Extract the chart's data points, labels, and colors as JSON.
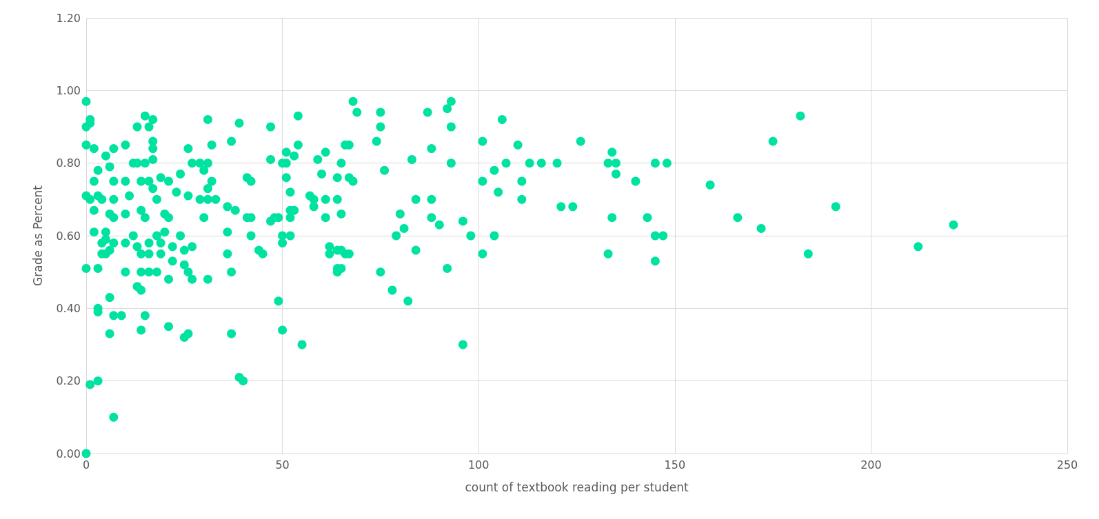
{
  "chart_data": {
    "type": "scatter",
    "xlabel": "count of textbook reading per student",
    "ylabel": "Grade as Percent",
    "xlim": [
      0,
      250
    ],
    "xticks": [
      0,
      50,
      100,
      150,
      200,
      250
    ],
    "ylim": [
      0,
      1.2
    ],
    "yticks": [
      {
        "value": 0,
        "label": "0.00"
      },
      {
        "value": 0.2,
        "label": "0.20"
      },
      {
        "value": 0.4,
        "label": "0.40"
      },
      {
        "value": 0.6,
        "label": "0.60"
      },
      {
        "value": 0.8,
        "label": "0.80"
      },
      {
        "value": 1,
        "label": "1.00"
      },
      {
        "value": 1.2,
        "label": "1.20"
      }
    ],
    "grid": true,
    "marker": "circle",
    "series": [
      {
        "color": "#00e3a0",
        "x": [
          0,
          0,
          1,
          1,
          0,
          0,
          1,
          0,
          0,
          1,
          2,
          2,
          2,
          2,
          3,
          3,
          3,
          3,
          3,
          3,
          4,
          4,
          4,
          5,
          5,
          5,
          5,
          6,
          6,
          6,
          6,
          6,
          7,
          7,
          7,
          7,
          7,
          7,
          7,
          9,
          10,
          10,
          10,
          10,
          10,
          11,
          12,
          12,
          13,
          13,
          13,
          13,
          14,
          14,
          14,
          14,
          14,
          14,
          15,
          15,
          15,
          15,
          16,
          16,
          16,
          16,
          16,
          17,
          17,
          17,
          17,
          17,
          18,
          18,
          18,
          19,
          19,
          19,
          20,
          20,
          21,
          21,
          21,
          21,
          22,
          22,
          23,
          24,
          24,
          25,
          25,
          25,
          26,
          26,
          26,
          26,
          27,
          27,
          27,
          29,
          29,
          30,
          30,
          31,
          31,
          31,
          31,
          31,
          32,
          32,
          33,
          36,
          36,
          36,
          37,
          37,
          37,
          38,
          39,
          39,
          40,
          41,
          41,
          42,
          42,
          42,
          44,
          45,
          47,
          47,
          47,
          48,
          49,
          49,
          50,
          50,
          50,
          50,
          51,
          51,
          51,
          52,
          52,
          52,
          52,
          53,
          53,
          54,
          54,
          55,
          57,
          58,
          58,
          59,
          60,
          61,
          61,
          61,
          62,
          62,
          64,
          64,
          64,
          64,
          64,
          65,
          65,
          65,
          65,
          66,
          66,
          67,
          67,
          67,
          68,
          68,
          69,
          74,
          75,
          75,
          75,
          76,
          78,
          79,
          80,
          81,
          82,
          83,
          84,
          84,
          87,
          88,
          88,
          88,
          90,
          92,
          92,
          93,
          93,
          93,
          96,
          96,
          98,
          101,
          101,
          101,
          104,
          104,
          105,
          106,
          107,
          110,
          111,
          111,
          113,
          116,
          120,
          121,
          124,
          126,
          133,
          133,
          134,
          134,
          135,
          135,
          140,
          143,
          145,
          145,
          145,
          147,
          148,
          159,
          166,
          172,
          175,
          182,
          184,
          191,
          212,
          221
        ],
        "values": [
          0.97,
          0.9,
          0.92,
          0.91,
          0.85,
          0.71,
          0.7,
          0.51,
          0,
          0.19,
          0.84,
          0.75,
          0.67,
          0.61,
          0.78,
          0.71,
          0.51,
          0.4,
          0.39,
          0.2,
          0.7,
          0.58,
          0.55,
          0.82,
          0.61,
          0.59,
          0.55,
          0.79,
          0.66,
          0.56,
          0.43,
          0.33,
          0.84,
          0.75,
          0.7,
          0.65,
          0.58,
          0.38,
          0.1,
          0.38,
          0.85,
          0.75,
          0.66,
          0.58,
          0.5,
          0.71,
          0.8,
          0.6,
          0.9,
          0.8,
          0.57,
          0.46,
          0.75,
          0.67,
          0.55,
          0.5,
          0.45,
          0.34,
          0.93,
          0.8,
          0.65,
          0.38,
          0.9,
          0.75,
          0.58,
          0.55,
          0.5,
          0.92,
          0.86,
          0.84,
          0.81,
          0.73,
          0.7,
          0.6,
          0.5,
          0.76,
          0.58,
          0.55,
          0.66,
          0.61,
          0.75,
          0.65,
          0.48,
          0.35,
          0.57,
          0.53,
          0.72,
          0.77,
          0.6,
          0.56,
          0.52,
          0.32,
          0.84,
          0.71,
          0.5,
          0.33,
          0.8,
          0.57,
          0.48,
          0.8,
          0.7,
          0.78,
          0.65,
          0.92,
          0.8,
          0.73,
          0.7,
          0.48,
          0.85,
          0.75,
          0.7,
          0.68,
          0.61,
          0.55,
          0.86,
          0.5,
          0.33,
          0.67,
          0.91,
          0.21,
          0.2,
          0.76,
          0.65,
          0.75,
          0.65,
          0.6,
          0.56,
          0.55,
          0.9,
          0.81,
          0.64,
          0.65,
          0.42,
          0.65,
          0.8,
          0.6,
          0.58,
          0.34,
          0.83,
          0.76,
          0.8,
          0.72,
          0.67,
          0.65,
          0.6,
          0.82,
          0.67,
          0.93,
          0.85,
          0.3,
          0.71,
          0.7,
          0.68,
          0.81,
          0.77,
          0.83,
          0.7,
          0.65,
          0.57,
          0.55,
          0.76,
          0.7,
          0.56,
          0.51,
          0.5,
          0.8,
          0.66,
          0.56,
          0.51,
          0.85,
          0.55,
          0.85,
          0.76,
          0.55,
          0.97,
          0.75,
          0.94,
          0.86,
          0.94,
          0.9,
          0.5,
          0.78,
          0.45,
          0.6,
          0.66,
          0.62,
          0.42,
          0.81,
          0.7,
          0.56,
          0.94,
          0.84,
          0.7,
          0.65,
          0.63,
          0.51,
          0.95,
          0.97,
          0.9,
          0.8,
          0.64,
          0.3,
          0.6,
          0.86,
          0.75,
          0.55,
          0.78,
          0.6,
          0.72,
          0.92,
          0.8,
          0.85,
          0.75,
          0.7,
          0.8,
          0.8,
          0.8,
          0.68,
          0.68,
          0.86,
          0.8,
          0.55,
          0.83,
          0.65,
          0.8,
          0.77,
          0.75,
          0.65,
          0.8,
          0.6,
          0.53,
          0.6,
          0.8,
          0.74,
          0.65,
          0.62,
          0.86,
          0.93,
          0.55,
          0.68,
          0.57,
          0.63
        ]
      }
    ]
  }
}
